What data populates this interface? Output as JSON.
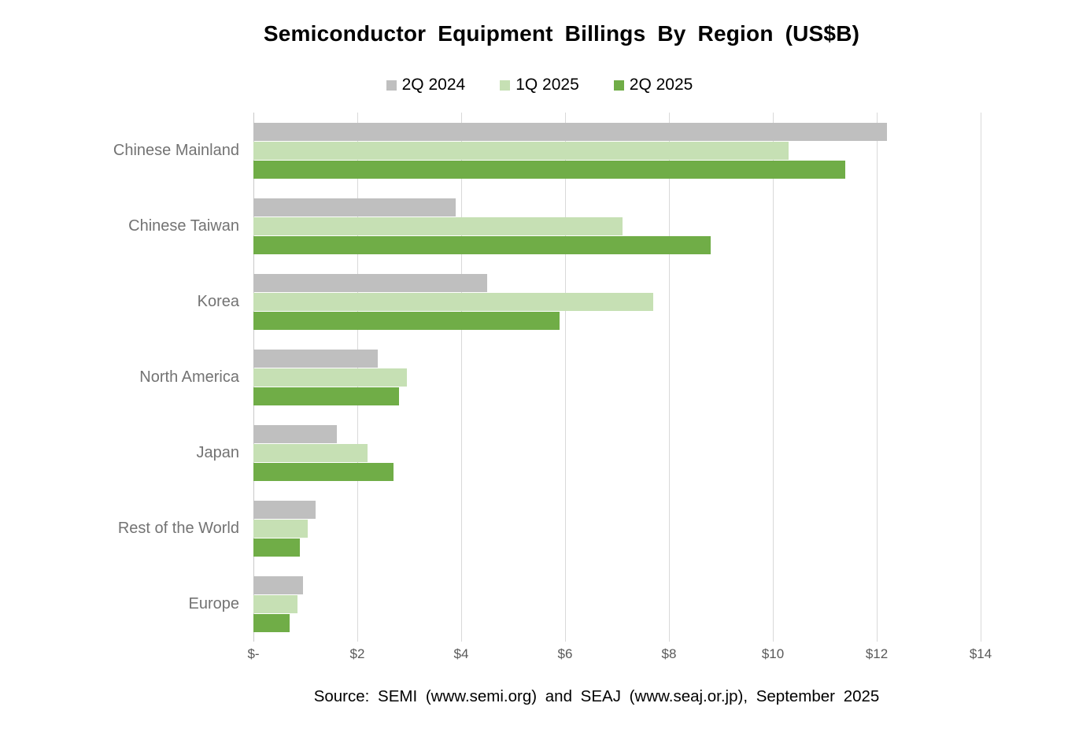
{
  "title": "Semiconductor Equipment Billings By Region (US$B)",
  "source": "Source: SEMI (www.semi.org) and SEAJ (www.seaj.or.jp),  September 2025",
  "colors": {
    "series_gray": "#BFBFBF",
    "series_light_green": "#C6E0B4",
    "series_green": "#70AD47",
    "gridline": "#D9D9D9",
    "axis_text": "#595959",
    "category_text": "#737373"
  },
  "chart_data": {
    "type": "bar",
    "orientation": "horizontal",
    "title": "Semiconductor Equipment Billings By Region (US$B)",
    "categories": [
      "Chinese Mainland",
      "Chinese Taiwan",
      "Korea",
      "North America",
      "Japan",
      "Rest of the World",
      "Europe"
    ],
    "series": [
      {
        "name": "2Q 2024",
        "color": "#BFBFBF",
        "values": [
          12.2,
          3.9,
          4.5,
          2.4,
          1.6,
          1.2,
          0.95
        ]
      },
      {
        "name": "1Q 2025",
        "color": "#C6E0B4",
        "values": [
          10.3,
          7.1,
          7.7,
          2.95,
          2.2,
          1.05,
          0.85
        ]
      },
      {
        "name": "2Q 2025",
        "color": "#70AD47",
        "values": [
          11.4,
          8.8,
          5.9,
          2.8,
          2.7,
          0.9,
          0.7
        ]
      }
    ],
    "xlim": [
      0,
      14
    ],
    "x_tick_step": 2,
    "x_tick_labels": [
      "$-",
      "$2",
      "$4",
      "$6",
      "$8",
      "$10",
      "$12",
      "$14"
    ],
    "grid": true,
    "legend_position": "top",
    "legend_entries": [
      "2Q 2024",
      "1Q 2025",
      "2Q 2025"
    ],
    "source_note": "Source: SEMI (www.semi.org) and SEAJ (www.seaj.or.jp),  September 2025"
  }
}
